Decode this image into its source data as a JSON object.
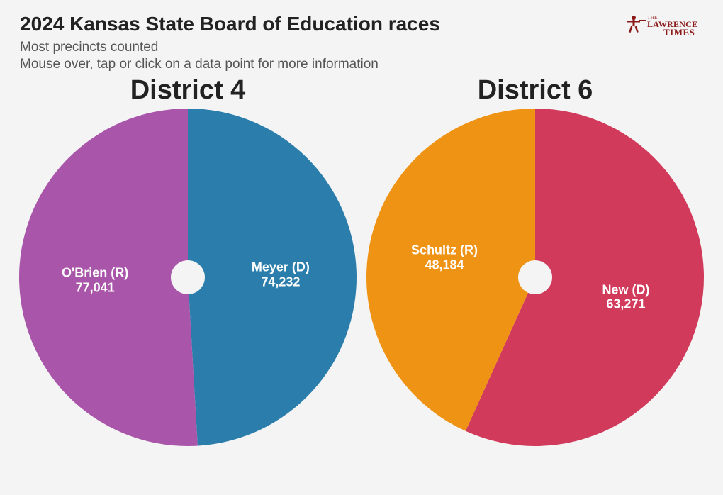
{
  "header": {
    "title": "2024 Kansas State Board of Education races",
    "subtitle": "Most precincts counted",
    "hint": "Mouse over, tap or click on a data point for more information"
  },
  "logo": {
    "name": "The Lawrence Times",
    "color": "#8b1a1a"
  },
  "layout": {
    "donut_outer_radius": 238,
    "donut_inner_radius": 24,
    "background_color": "#f4f4f4",
    "title_fontsize": 28,
    "subtitle_fontsize": 19,
    "chart_title_fontsize": 38,
    "label_fontsize": 18,
    "label_color": "#ffffff"
  },
  "charts": [
    {
      "title": "District 4",
      "type": "donut",
      "slices": [
        {
          "label": "Meyer (D)",
          "value": 74232,
          "value_text": "74,232",
          "color": "#2b7eab"
        },
        {
          "label": "O'Brien (R)",
          "value": 77041,
          "value_text": "77,041",
          "color": "#a956aa"
        }
      ]
    },
    {
      "title": "District 6",
      "type": "donut",
      "slices": [
        {
          "label": "New (D)",
          "value": 63271,
          "value_text": "63,271",
          "color": "#d13a5b"
        },
        {
          "label": "Schultz (R)",
          "value": 48184,
          "value_text": "48,184",
          "color": "#ef9314"
        }
      ]
    }
  ]
}
